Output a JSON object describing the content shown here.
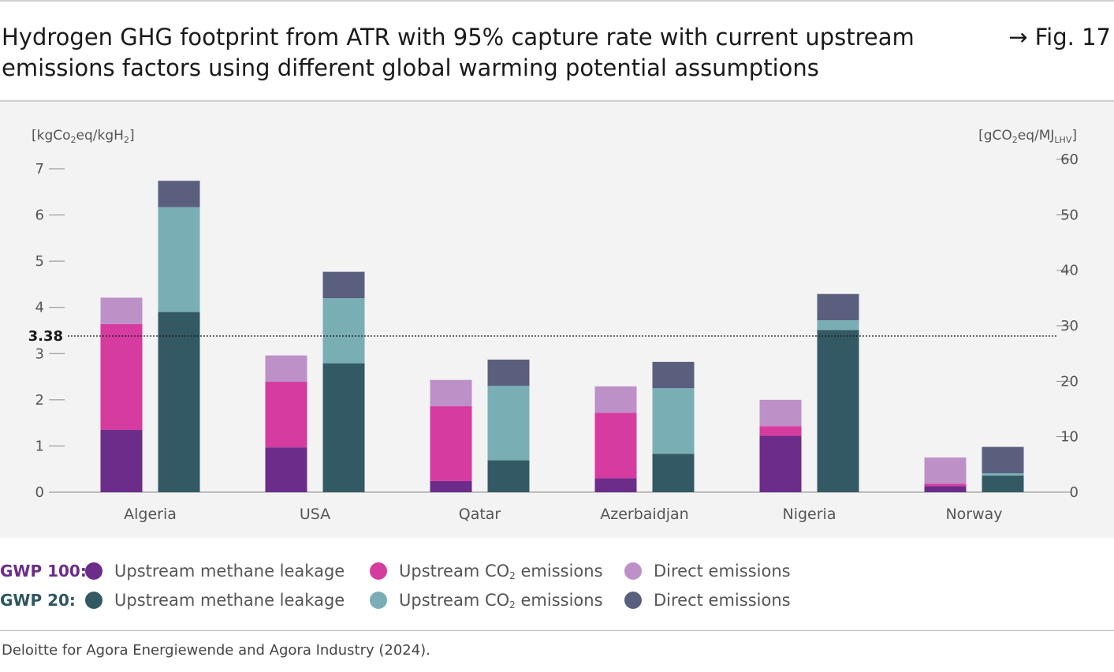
{
  "title": "Hydrogen GHG footprint from ATR with 95% capture rate with current upstream emissions factors using different global warming potential assumptions",
  "figure_ref": "→ Fig. 17",
  "source": "Deloitte for Agora Energiewende and Agora Industry (2024).",
  "legend": {
    "groups": [
      {
        "label": "GWP 100:",
        "color": "#6b2c8a",
        "items": [
          {
            "label": "Upstream methane leakage",
            "color": "#6b2c8a"
          },
          {
            "label": "Upstream CO",
            "sub": "2",
            "label_after": " emissions",
            "color": "#d63ba0"
          },
          {
            "label": "Direct emissions",
            "color": "#bd90c8"
          }
        ]
      },
      {
        "label": "GWP 20:",
        "color": "#2e5660",
        "items": [
          {
            "label": "Upstream methane leakage",
            "color": "#335a64"
          },
          {
            "label": "Upstream CO",
            "sub": "2",
            "label_after": " emissions",
            "color": "#7aaeb5"
          },
          {
            "label": "Direct emissions",
            "color": "#5a5f7e"
          }
        ]
      }
    ]
  },
  "chart_data": {
    "type": "bar",
    "stacked": true,
    "grouped": true,
    "categories": [
      "Algeria",
      "USA",
      "Qatar",
      "Azerbaidjan",
      "Nigeria",
      "Norway"
    ],
    "left_axis": {
      "label": "[kgCo",
      "label_sub": "2",
      "label_mid": "eq/kgH",
      "label_sub2": "2",
      "label_end": "]",
      "ticks": [
        "0",
        "1",
        "2",
        "3",
        "4",
        "5",
        "6",
        "7"
      ],
      "ylim": [
        0,
        7
      ]
    },
    "right_axis": {
      "label": "[gCO",
      "label_sub": "2",
      "label_mid": "eq/MJ",
      "label_sub2": "LHV",
      "label_end": "]",
      "ticks": [
        "0",
        "10",
        "20",
        "30",
        "40",
        "50",
        "60"
      ],
      "ylim": [
        0,
        60
      ]
    },
    "reference_line": {
      "value": 3.38,
      "label": "3.38",
      "style": "dotted"
    },
    "groups": [
      {
        "name": "GWP 100",
        "series": [
          {
            "name": "Upstream methane leakage",
            "color": "#6b2c8a",
            "values": [
              1.35,
              0.97,
              0.24,
              0.3,
              1.22,
              0.13
            ]
          },
          {
            "name": "Upstream CO2 emissions",
            "color": "#d63ba0",
            "values": [
              2.29,
              1.42,
              1.62,
              1.42,
              0.21,
              0.05
            ]
          },
          {
            "name": "Direct emissions",
            "color": "#bd90c8",
            "values": [
              0.57,
              0.57,
              0.57,
              0.57,
              0.57,
              0.57
            ]
          }
        ]
      },
      {
        "name": "GWP 20",
        "series": [
          {
            "name": "Upstream methane leakage",
            "color": "#335a64",
            "values": [
              3.9,
              2.79,
              0.69,
              0.83,
              3.51,
              0.36
            ]
          },
          {
            "name": "Upstream CO2 emissions",
            "color": "#7aaeb5",
            "values": [
              2.27,
              1.41,
              1.61,
              1.42,
              0.21,
              0.05
            ]
          },
          {
            "name": "Direct emissions",
            "color": "#5a5f7e",
            "values": [
              0.57,
              0.57,
              0.57,
              0.57,
              0.57,
              0.57
            ]
          }
        ]
      }
    ],
    "grid": false
  }
}
